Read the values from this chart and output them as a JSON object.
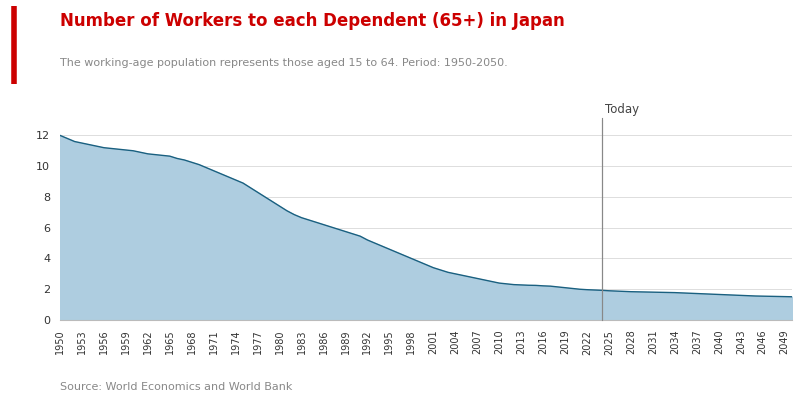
{
  "title": "Number of Workers to each Dependent (65+) in Japan",
  "subtitle": "The working-age population represents those aged 15 to 64. Period: 1950-2050.",
  "source": "Source: World Economics and World Bank",
  "title_color": "#cc0000",
  "subtitle_color": "#888888",
  "fill_color": "#aecde0",
  "line_color": "#1a6080",
  "today_line_color": "#888888",
  "today_year": 2024,
  "today_label": "Today",
  "background_color": "#ffffff",
  "left_bar_color": "#cc0000",
  "ylim": [
    0,
    13
  ],
  "yticks": [
    0,
    2,
    4,
    6,
    8,
    10,
    12
  ],
  "years": [
    1950,
    1951,
    1952,
    1953,
    1954,
    1955,
    1956,
    1957,
    1958,
    1959,
    1960,
    1961,
    1962,
    1963,
    1964,
    1965,
    1966,
    1967,
    1968,
    1969,
    1970,
    1971,
    1972,
    1973,
    1974,
    1975,
    1976,
    1977,
    1978,
    1979,
    1980,
    1981,
    1982,
    1983,
    1984,
    1985,
    1986,
    1987,
    1988,
    1989,
    1990,
    1991,
    1992,
    1993,
    1994,
    1995,
    1996,
    1997,
    1998,
    1999,
    2000,
    2001,
    2002,
    2003,
    2004,
    2005,
    2006,
    2007,
    2008,
    2009,
    2010,
    2011,
    2012,
    2013,
    2014,
    2015,
    2016,
    2017,
    2018,
    2019,
    2020,
    2021,
    2022,
    2023,
    2024,
    2025,
    2026,
    2027,
    2028,
    2029,
    2030,
    2031,
    2032,
    2033,
    2034,
    2035,
    2036,
    2037,
    2038,
    2039,
    2040,
    2041,
    2042,
    2043,
    2044,
    2045,
    2046,
    2047,
    2048,
    2049,
    2050
  ],
  "values": [
    12.0,
    11.8,
    11.6,
    11.5,
    11.4,
    11.3,
    11.2,
    11.15,
    11.1,
    11.05,
    11.0,
    10.9,
    10.8,
    10.75,
    10.7,
    10.65,
    10.5,
    10.4,
    10.25,
    10.1,
    9.9,
    9.7,
    9.5,
    9.3,
    9.1,
    8.9,
    8.6,
    8.3,
    8.0,
    7.7,
    7.4,
    7.1,
    6.85,
    6.65,
    6.5,
    6.35,
    6.2,
    6.05,
    5.9,
    5.75,
    5.6,
    5.45,
    5.2,
    5.0,
    4.8,
    4.6,
    4.4,
    4.2,
    4.0,
    3.8,
    3.6,
    3.4,
    3.25,
    3.1,
    3.0,
    2.9,
    2.8,
    2.7,
    2.6,
    2.5,
    2.4,
    2.35,
    2.3,
    2.28,
    2.26,
    2.25,
    2.22,
    2.2,
    2.15,
    2.1,
    2.05,
    2.0,
    1.97,
    1.95,
    1.93,
    1.9,
    1.88,
    1.86,
    1.84,
    1.83,
    1.82,
    1.81,
    1.8,
    1.79,
    1.78,
    1.76,
    1.74,
    1.72,
    1.7,
    1.68,
    1.66,
    1.64,
    1.62,
    1.6,
    1.58,
    1.56,
    1.55,
    1.54,
    1.53,
    1.52,
    1.51
  ]
}
